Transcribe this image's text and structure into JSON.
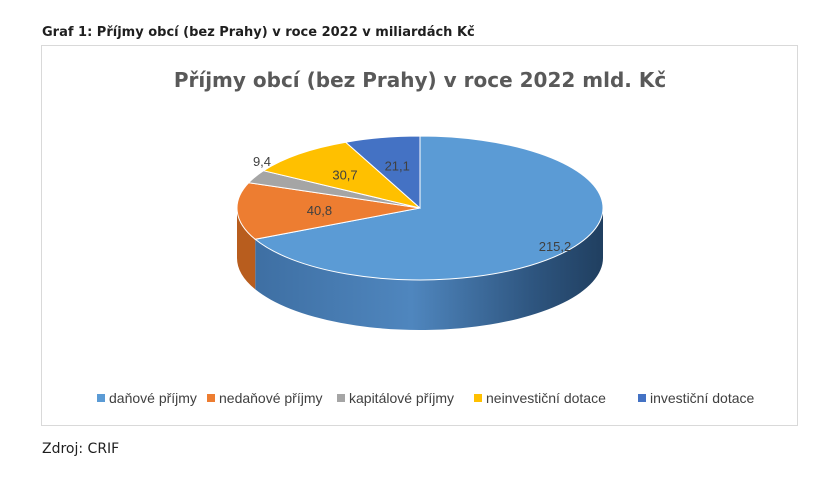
{
  "caption": "Graf 1: Příjmy obcí (bez Prahy) v roce 2022 v miliardách Kč",
  "source": "Zdroj: CRIF",
  "chart_data": {
    "type": "pie",
    "style": "3d",
    "title": "Příjmy obcí (bez Prahy) v roce 2022 mld. Kč",
    "categories": [
      "daňové příjmy",
      "nedaňové příjmy",
      "kapitálové příjmy",
      "neinvestiční dotace",
      "investiční dotace"
    ],
    "values": [
      215.2,
      40.8,
      9.4,
      30.7,
      21.1
    ],
    "value_labels": [
      "215,2",
      "40,8",
      "9,4",
      "30,7",
      "21,1"
    ],
    "colors": [
      "#5b9bd5",
      "#ed7d31",
      "#a5a5a5",
      "#ffc000",
      "#4472c4"
    ],
    "side_colors": [
      "#2f5f8f",
      "#b85d1e",
      "#7f7f7f",
      "#c49400",
      "#2e4f8f"
    ],
    "legend_position": "bottom"
  }
}
